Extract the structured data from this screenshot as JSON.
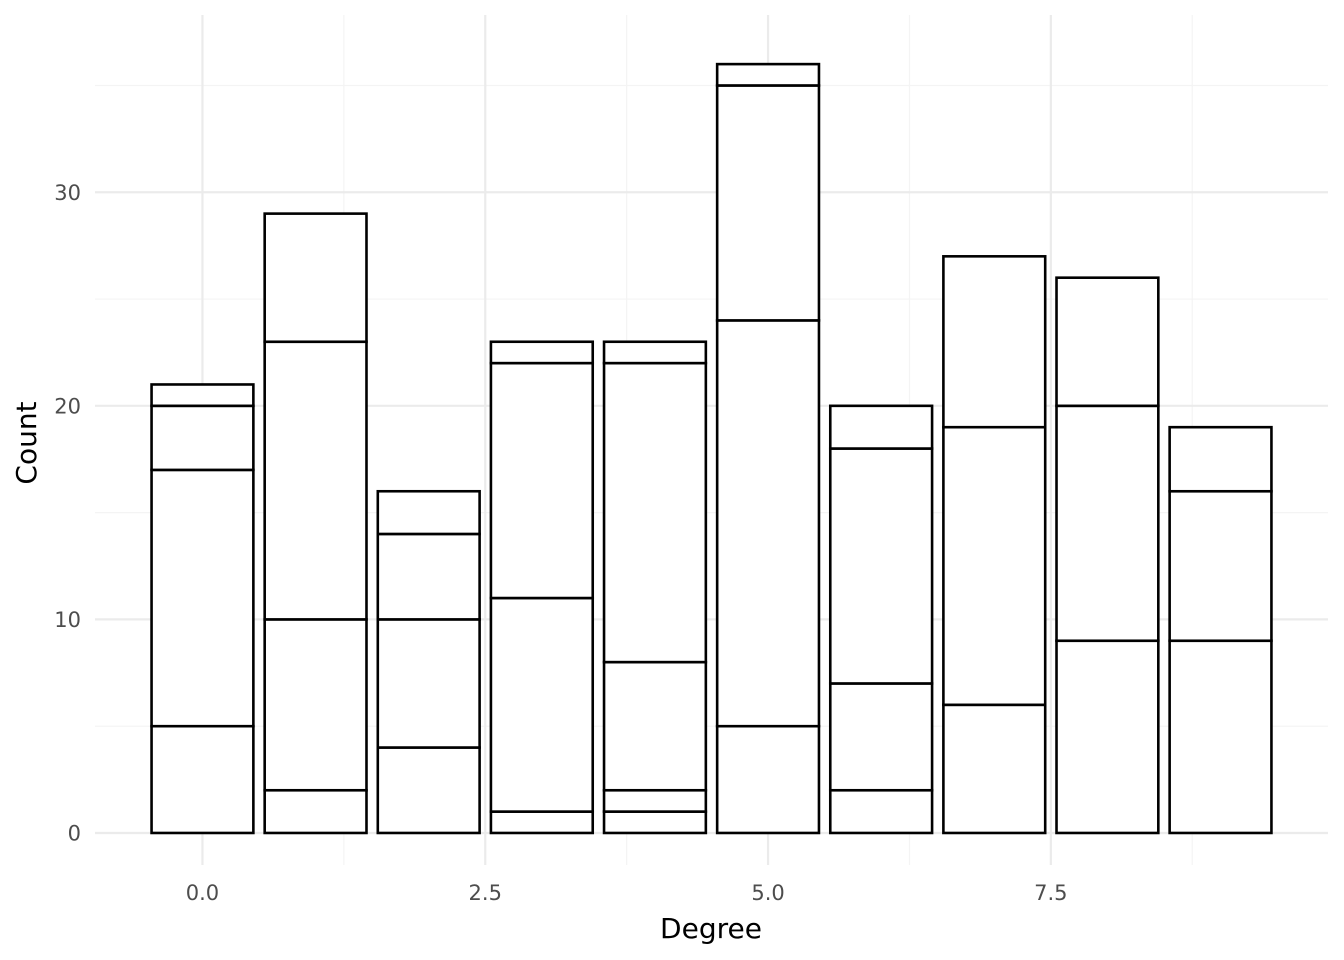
{
  "chart_data": {
    "type": "bar",
    "stacked": true,
    "title": "",
    "xlabel": "Degree",
    "ylabel": "Count",
    "x": [
      0,
      1,
      2,
      3,
      4,
      5,
      6,
      7,
      8,
      9
    ],
    "stack_segments": [
      [
        5,
        12,
        3,
        1
      ],
      [
        2,
        8,
        13,
        6
      ],
      [
        4,
        6,
        4,
        2
      ],
      [
        1,
        10,
        11,
        1
      ],
      [
        1,
        1,
        6,
        14,
        1
      ],
      [
        5,
        19,
        11,
        1
      ],
      [
        2,
        5,
        11,
        2
      ],
      [
        6,
        13,
        8
      ],
      [
        9,
        11,
        6
      ],
      [
        9,
        7,
        3
      ]
    ],
    "totals": [
      21,
      29,
      16,
      23,
      23,
      36,
      20,
      27,
      26,
      19
    ],
    "xlim": [
      -0.95,
      9.95
    ],
    "ylim": [
      -1.5,
      38.3
    ],
    "x_ticks": [
      0,
      2.5,
      5,
      7.5
    ],
    "x_tick_labels": [
      "0.0",
      "2.5",
      "5.0",
      "7.5"
    ],
    "y_ticks": [
      0,
      10,
      20,
      30
    ],
    "y_tick_labels": [
      "0",
      "10",
      "20",
      "30"
    ],
    "grid": true,
    "legend": "none",
    "colors": {
      "bar_fill": "#ffffff",
      "bar_stroke": "#000000",
      "grid": "#ebebeb",
      "tick_text": "#4d4d4d",
      "axis_title": "#000000"
    }
  }
}
